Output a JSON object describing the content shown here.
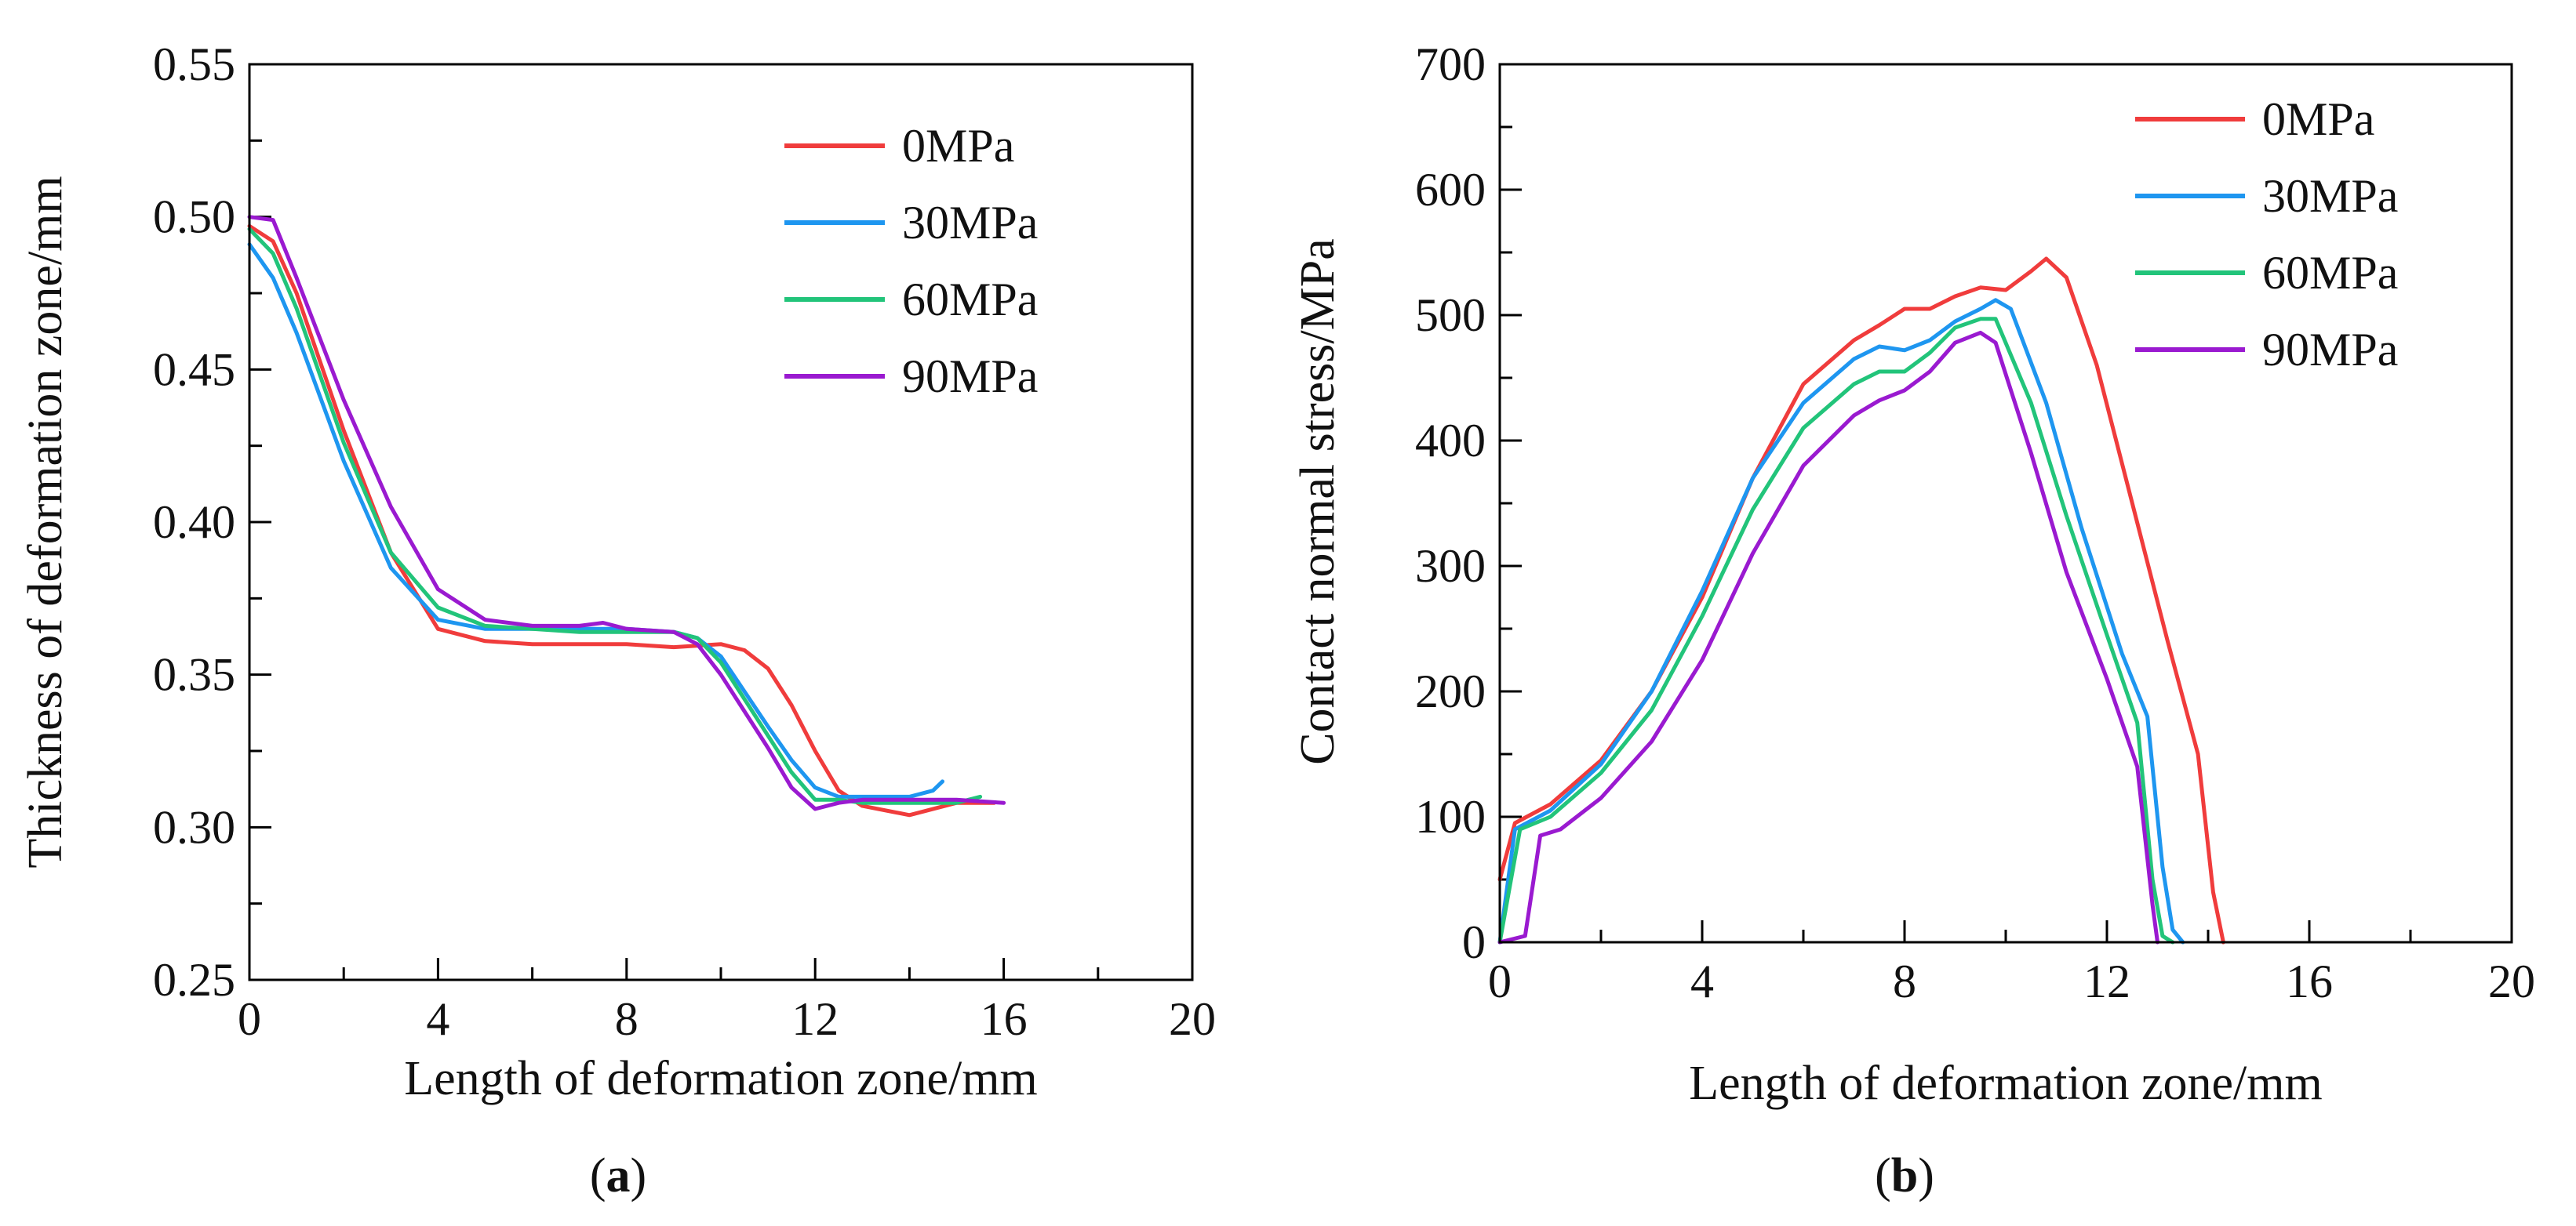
{
  "colors": {
    "0MPa": "#f03c3c",
    "30MPa": "#1e96f0",
    "60MPa": "#22c47a",
    "90MPa": "#9a1ad0"
  },
  "chart_data": [
    {
      "id": "a",
      "type": "line",
      "panel_label": "a",
      "xlabel": "Length of deformation zone/mm",
      "ylabel": "Thickness of deformation zone/mm",
      "xlim": [
        0,
        20
      ],
      "ylim": [
        0.25,
        0.55
      ],
      "xticks": [
        "0",
        "4",
        "8",
        "12",
        "16",
        "20"
      ],
      "yticks": [
        "0.25",
        "0.30",
        "0.35",
        "0.40",
        "0.45",
        "0.50",
        "0.55"
      ],
      "legend_position": "top-right",
      "series": [
        {
          "name": "0MPa",
          "x": [
            0,
            0.5,
            1,
            2,
            3,
            4,
            5,
            6,
            7,
            8,
            9,
            10,
            10.5,
            11,
            11.5,
            12,
            12.5,
            13,
            14,
            15,
            15.8
          ],
          "y": [
            0.497,
            0.492,
            0.475,
            0.43,
            0.39,
            0.365,
            0.361,
            0.36,
            0.36,
            0.36,
            0.359,
            0.36,
            0.358,
            0.352,
            0.34,
            0.325,
            0.312,
            0.307,
            0.304,
            0.308,
            0.308
          ]
        },
        {
          "name": "30MPa",
          "x": [
            0,
            0.5,
            1,
            2,
            3,
            4,
            5,
            6,
            7,
            8,
            9,
            9.5,
            10,
            11,
            11.5,
            12,
            12.5,
            13,
            14,
            14.5,
            14.7
          ],
          "y": [
            0.491,
            0.48,
            0.462,
            0.42,
            0.385,
            0.368,
            0.365,
            0.365,
            0.365,
            0.365,
            0.364,
            0.362,
            0.356,
            0.333,
            0.322,
            0.313,
            0.31,
            0.31,
            0.31,
            0.312,
            0.315
          ]
        },
        {
          "name": "60MPa",
          "x": [
            0,
            0.5,
            1,
            2,
            3,
            4,
            5,
            6,
            7,
            8,
            9,
            9.5,
            10,
            11,
            11.5,
            12,
            12.5,
            13,
            14,
            15,
            15.5
          ],
          "y": [
            0.496,
            0.488,
            0.47,
            0.426,
            0.39,
            0.372,
            0.366,
            0.365,
            0.364,
            0.364,
            0.364,
            0.362,
            0.354,
            0.33,
            0.318,
            0.309,
            0.309,
            0.308,
            0.308,
            0.308,
            0.31
          ]
        },
        {
          "name": "90MPa",
          "x": [
            0,
            0.5,
            1,
            2,
            3,
            4,
            5,
            6,
            7,
            7.5,
            8,
            9,
            9.5,
            10,
            11,
            11.5,
            12,
            12.5,
            13,
            14,
            15,
            16
          ],
          "y": [
            0.5,
            0.499,
            0.48,
            0.44,
            0.405,
            0.378,
            0.368,
            0.366,
            0.366,
            0.367,
            0.365,
            0.364,
            0.36,
            0.35,
            0.326,
            0.313,
            0.306,
            0.308,
            0.309,
            0.309,
            0.309,
            0.308
          ]
        }
      ]
    },
    {
      "id": "b",
      "type": "line",
      "panel_label": "b",
      "xlabel": "Length of deformation zone/mm",
      "ylabel": "Contact normal stress/MPa",
      "xlim": [
        0,
        20
      ],
      "ylim": [
        0,
        700
      ],
      "xticks": [
        "0",
        "4",
        "8",
        "12",
        "16",
        "20"
      ],
      "yticks": [
        "0",
        "100",
        "200",
        "300",
        "400",
        "500",
        "600",
        "700"
      ],
      "legend_position": "top-right",
      "series": [
        {
          "name": "0MPa",
          "x": [
            0,
            0.3,
            1,
            2,
            3,
            4,
            5,
            6,
            7,
            7.5,
            8,
            8.5,
            9,
            9.5,
            10,
            10.5,
            10.8,
            11.2,
            11.8,
            12.5,
            13.2,
            13.8,
            14.1,
            14.3
          ],
          "y": [
            50,
            95,
            110,
            145,
            200,
            275,
            370,
            445,
            480,
            492,
            505,
            505,
            515,
            522,
            520,
            535,
            545,
            530,
            460,
            350,
            240,
            150,
            40,
            0
          ]
        },
        {
          "name": "30MPa",
          "x": [
            0,
            0.3,
            1,
            2,
            3,
            4,
            5,
            6,
            7,
            7.5,
            8,
            8.5,
            9,
            9.5,
            9.8,
            10.1,
            10.8,
            11.5,
            12.3,
            12.8,
            13.1,
            13.3,
            13.5
          ],
          "y": [
            0,
            90,
            105,
            142,
            200,
            280,
            370,
            430,
            465,
            475,
            472,
            480,
            495,
            505,
            512,
            505,
            430,
            330,
            230,
            180,
            60,
            10,
            0
          ]
        },
        {
          "name": "60MPa",
          "x": [
            0,
            0.4,
            1,
            2,
            3,
            4,
            5,
            6,
            7,
            7.5,
            8,
            8.5,
            9,
            9.5,
            9.8,
            10.5,
            11.2,
            12,
            12.6,
            12.9,
            13.1,
            13.3
          ],
          "y": [
            0,
            90,
            100,
            135,
            185,
            260,
            345,
            410,
            445,
            455,
            455,
            470,
            490,
            497,
            497,
            430,
            340,
            245,
            175,
            50,
            5,
            0
          ]
        },
        {
          "name": "90MPa",
          "x": [
            0,
            0.5,
            0.8,
            1.2,
            2,
            3,
            4,
            5,
            6,
            7,
            7.5,
            8,
            8.5,
            9,
            9.5,
            9.8,
            10.5,
            11.2,
            12,
            12.6,
            12.9,
            13.0
          ],
          "y": [
            0,
            5,
            85,
            90,
            115,
            160,
            225,
            310,
            380,
            420,
            432,
            440,
            455,
            478,
            486,
            478,
            390,
            295,
            210,
            140,
            30,
            0
          ]
        }
      ]
    }
  ]
}
